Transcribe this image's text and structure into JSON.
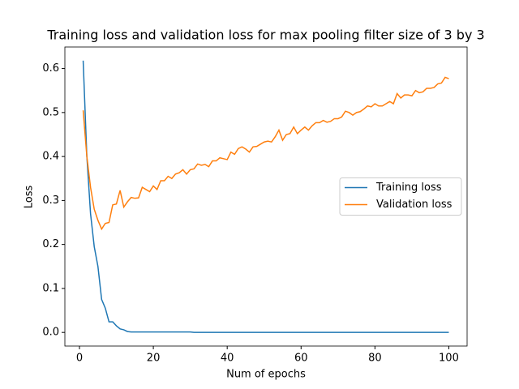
{
  "chart_data": {
    "type": "line",
    "title": "Training loss and validation loss for max pooling filter size of 3 by 3",
    "x_label": "Num of epochs",
    "y_label": "Loss",
    "x": [
      1,
      2,
      3,
      4,
      5,
      6,
      7,
      8,
      9,
      10,
      11,
      12,
      13,
      14,
      15,
      16,
      17,
      18,
      19,
      20,
      21,
      22,
      23,
      24,
      25,
      26,
      27,
      28,
      29,
      30,
      31,
      32,
      33,
      34,
      35,
      36,
      37,
      38,
      39,
      40,
      41,
      42,
      43,
      44,
      45,
      46,
      47,
      48,
      49,
      50,
      51,
      52,
      53,
      54,
      55,
      56,
      57,
      58,
      59,
      60,
      61,
      62,
      63,
      64,
      65,
      66,
      67,
      68,
      69,
      70,
      71,
      72,
      73,
      74,
      75,
      76,
      77,
      78,
      79,
      80,
      81,
      82,
      83,
      84,
      85,
      86,
      87,
      88,
      89,
      90,
      91,
      92,
      93,
      94,
      95,
      96,
      97,
      98,
      99,
      100
    ],
    "series": [
      {
        "name": "Training loss",
        "color": "#1f77b4",
        "values": [
          0.618,
          0.4,
          0.27,
          0.195,
          0.15,
          0.075,
          0.055,
          0.024,
          0.024,
          0.015,
          0.008,
          0.006,
          0.002,
          0.001,
          0.001,
          0.001,
          0.001,
          0.001,
          0.001,
          0.001,
          0.001,
          0.001,
          0.001,
          0.001,
          0.001,
          0.001,
          0.001,
          0.001,
          0.001,
          0.001,
          0,
          0,
          0,
          0,
          0,
          0,
          0,
          0,
          0,
          0,
          0,
          0,
          0,
          0,
          0,
          0,
          0,
          0,
          0,
          0,
          0,
          0,
          0,
          0,
          0,
          0,
          0,
          0,
          0,
          0,
          0,
          0,
          0,
          0,
          0,
          0,
          0,
          0,
          0,
          0,
          0,
          0,
          0,
          0,
          0,
          0,
          0,
          0,
          0,
          0,
          0,
          0,
          0,
          0,
          0,
          0,
          0,
          0,
          0,
          0,
          0,
          0,
          0,
          0,
          0,
          0,
          0,
          0,
          0,
          0
        ]
      },
      {
        "name": "Validation loss",
        "color": "#ff7f0e",
        "values": [
          0.505,
          0.4,
          0.33,
          0.28,
          0.255,
          0.235,
          0.248,
          0.25,
          0.29,
          0.292,
          0.323,
          0.285,
          0.297,
          0.307,
          0.305,
          0.306,
          0.33,
          0.325,
          0.32,
          0.333,
          0.325,
          0.345,
          0.345,
          0.355,
          0.35,
          0.36,
          0.363,
          0.37,
          0.36,
          0.37,
          0.372,
          0.383,
          0.38,
          0.382,
          0.377,
          0.39,
          0.39,
          0.397,
          0.395,
          0.393,
          0.41,
          0.405,
          0.418,
          0.422,
          0.417,
          0.41,
          0.422,
          0.423,
          0.428,
          0.433,
          0.435,
          0.433,
          0.445,
          0.46,
          0.437,
          0.45,
          0.452,
          0.467,
          0.452,
          0.46,
          0.467,
          0.46,
          0.47,
          0.477,
          0.477,
          0.482,
          0.478,
          0.48,
          0.486,
          0.486,
          0.49,
          0.503,
          0.5,
          0.494,
          0.5,
          0.502,
          0.508,
          0.515,
          0.513,
          0.52,
          0.515,
          0.515,
          0.52,
          0.525,
          0.52,
          0.543,
          0.533,
          0.54,
          0.54,
          0.538,
          0.55,
          0.545,
          0.547,
          0.555,
          0.555,
          0.557,
          0.565,
          0.567,
          0.58,
          0.577
        ]
      }
    ],
    "xlim": [
      -3.95,
      104.95
    ],
    "ylim": [
      -0.031,
      0.649
    ],
    "xticks": [
      0,
      20,
      40,
      60,
      80,
      100
    ],
    "yticks": [
      {
        "value": 0,
        "label": "0.0"
      },
      0.1,
      0.2,
      0.3,
      0.4,
      0.5,
      0.6
    ],
    "legend": "center right"
  }
}
